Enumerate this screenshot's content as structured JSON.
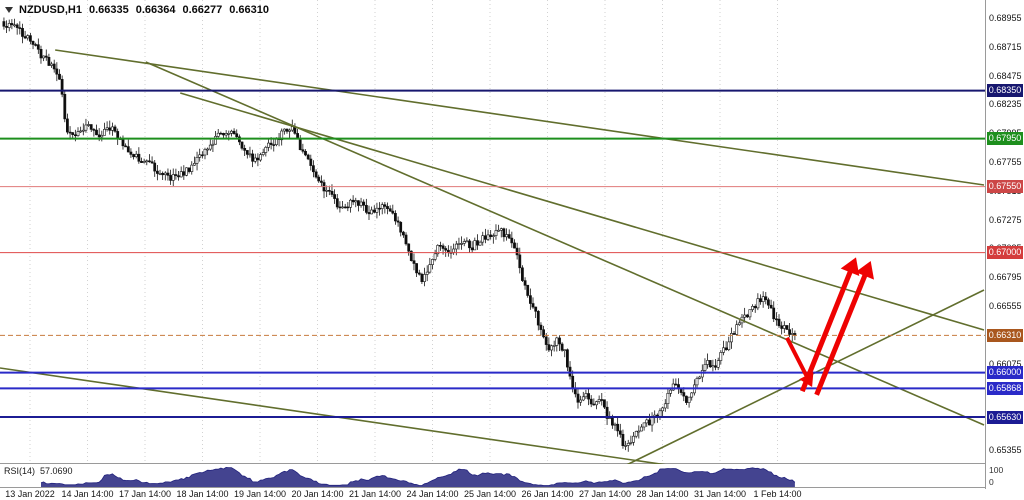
{
  "header": {
    "symbol_timeframe": "NZDUSD,H1",
    "open": "0.66335",
    "high": "0.66364",
    "low": "0.66277",
    "close": "0.66310"
  },
  "price_axis": {
    "ticks": [
      "0.68955",
      "0.68715",
      "0.68475",
      "0.68235",
      "0.67995",
      "0.67755",
      "0.67515",
      "0.67275",
      "0.67035",
      "0.66795",
      "0.66555",
      "0.66315",
      "0.66075",
      "0.65835",
      "0.65595",
      "0.65355"
    ]
  },
  "time_axis": {
    "labels": [
      "13 Jan 2022",
      "14 Jan 14:00",
      "17 Jan 14:00",
      "18 Jan 14:00",
      "19 Jan 14:00",
      "20 Jan 14:00",
      "21 Jan 14:00",
      "24 Jan 14:00",
      "25 Jan 14:00",
      "26 Jan 14:00",
      "27 Jan 14:00",
      "28 Jan 14:00",
      "31 Jan 14:00",
      "1 Feb 14:00"
    ]
  },
  "rsi": {
    "name": "RSI(14)",
    "value": "57.0690",
    "scale_top": "100",
    "scale_bottom": "0"
  },
  "chart_data": {
    "type": "candlestick",
    "symbol": "NZDUSD",
    "timeframe": "H1",
    "last_ohlc": {
      "open": 0.66335,
      "high": 0.66364,
      "low": 0.66277,
      "close": 0.6631
    },
    "last_close": 0.6631,
    "y_range": [
      0.65355,
      0.68955
    ],
    "candle_count": 300,
    "candle_region": [
      0.004,
      0.807
    ],
    "rsi_period": 14,
    "waypoints": [
      [
        0,
        0.6887
      ],
      [
        0.01,
        0.6893
      ],
      [
        0.033,
        0.6876
      ],
      [
        0.058,
        0.6856
      ],
      [
        0.07,
        0.6848
      ],
      [
        0.078,
        0.6805
      ],
      [
        0.09,
        0.6798
      ],
      [
        0.105,
        0.6806
      ],
      [
        0.12,
        0.6795
      ],
      [
        0.135,
        0.6805
      ],
      [
        0.153,
        0.679
      ],
      [
        0.165,
        0.678
      ],
      [
        0.18,
        0.6775
      ],
      [
        0.195,
        0.6768
      ],
      [
        0.215,
        0.6762
      ],
      [
        0.228,
        0.6766
      ],
      [
        0.248,
        0.678
      ],
      [
        0.27,
        0.6796
      ],
      [
        0.285,
        0.6803
      ],
      [
        0.3,
        0.679
      ],
      [
        0.318,
        0.6776
      ],
      [
        0.332,
        0.6787
      ],
      [
        0.352,
        0.6799
      ],
      [
        0.364,
        0.6804
      ],
      [
        0.38,
        0.678
      ],
      [
        0.398,
        0.676
      ],
      [
        0.412,
        0.6748
      ],
      [
        0.425,
        0.6738
      ],
      [
        0.445,
        0.6742
      ],
      [
        0.465,
        0.6733
      ],
      [
        0.48,
        0.674
      ],
      [
        0.494,
        0.6728
      ],
      [
        0.505,
        0.6715
      ],
      [
        0.518,
        0.669
      ],
      [
        0.528,
        0.6675
      ],
      [
        0.54,
        0.6695
      ],
      [
        0.552,
        0.6708
      ],
      [
        0.565,
        0.67
      ],
      [
        0.578,
        0.671
      ],
      [
        0.592,
        0.6705
      ],
      [
        0.605,
        0.6712
      ],
      [
        0.618,
        0.6716
      ],
      [
        0.63,
        0.6718
      ],
      [
        0.645,
        0.6705
      ],
      [
        0.655,
        0.668
      ],
      [
        0.668,
        0.6655
      ],
      [
        0.68,
        0.6635
      ],
      [
        0.69,
        0.662
      ],
      [
        0.7,
        0.663
      ],
      [
        0.71,
        0.6615
      ],
      [
        0.718,
        0.659
      ],
      [
        0.728,
        0.6575
      ],
      [
        0.738,
        0.6582
      ],
      [
        0.746,
        0.657
      ],
      [
        0.755,
        0.6578
      ],
      [
        0.762,
        0.6565
      ],
      [
        0.772,
        0.6555
      ],
      [
        0.782,
        0.6542
      ],
      [
        0.79,
        0.6538
      ],
      [
        0.798,
        0.6548
      ],
      [
        0.808,
        0.6556
      ],
      [
        0.818,
        0.656
      ],
      [
        0.828,
        0.6568
      ],
      [
        0.838,
        0.6578
      ],
      [
        0.848,
        0.659
      ],
      [
        0.856,
        0.6585
      ],
      [
        0.864,
        0.6577
      ],
      [
        0.872,
        0.659
      ],
      [
        0.88,
        0.66
      ],
      [
        0.89,
        0.661
      ],
      [
        0.898,
        0.6605
      ],
      [
        0.906,
        0.6615
      ],
      [
        0.916,
        0.6625
      ],
      [
        0.928,
        0.664
      ],
      [
        0.94,
        0.6648
      ],
      [
        0.952,
        0.6658
      ],
      [
        0.96,
        0.6663
      ],
      [
        0.972,
        0.6649
      ],
      [
        0.982,
        0.6638
      ],
      [
        1,
        0.6631
      ]
    ],
    "levels": [
      {
        "label": "0.68350",
        "value": 0.6835,
        "color": "#17176f",
        "width": 2
      },
      {
        "label": "0.67950",
        "value": 0.6795,
        "color": "#1d8f1d",
        "width": 2
      },
      {
        "label": "0.67550",
        "value": 0.6755,
        "color": "#e07a7a",
        "width": 1,
        "badge": "#cc4747"
      },
      {
        "label": "0.67000",
        "value": 0.67,
        "color": "#df4a4a",
        "width": 1,
        "badge": "#d43c3c"
      },
      {
        "label": "0.66310",
        "value": 0.6631,
        "color": "#c77b3e",
        "width": 1,
        "dash": true,
        "badge": "#a9571e",
        "current": true
      },
      {
        "label": "0.66000",
        "value": 0.66,
        "color": "#2a2ac8",
        "width": 2
      },
      {
        "label": "0.65868",
        "value": 0.65868,
        "color": "#2a2ac8",
        "width": 2
      },
      {
        "label": "0.65630",
        "value": 0.6563,
        "color": "#1c1c94",
        "width": 2
      }
    ],
    "trendlines": [
      {
        "x1": 0.056,
        "p1": 0.68688,
        "x2": 0.999,
        "p2": 0.67563
      },
      {
        "x1": 0.148,
        "p1": 0.68588,
        "x2": 0.999,
        "p2": 0.65563
      },
      {
        "x1": 0.183,
        "p1": 0.6833,
        "x2": 0.999,
        "p2": 0.66355
      },
      {
        "x1": 0.0,
        "p1": 0.66038,
        "x2": 0.712,
        "p2": 0.65188
      },
      {
        "x1": 0.609,
        "p1": 0.65122,
        "x2": 0.999,
        "p2": 0.66688
      }
    ],
    "arrows": [
      {
        "x1": 0.799,
        "p1": 0.6629,
        "x2": 0.8245,
        "p2": 0.6588,
        "w": 4
      },
      {
        "x1": 0.8145,
        "p1": 0.65845,
        "x2": 0.869,
        "p2": 0.6696,
        "w": 5
      },
      {
        "x1": 0.829,
        "p1": 0.65815,
        "x2": 0.884,
        "p2": 0.6693,
        "w": 5
      }
    ],
    "palette": {
      "bull": "#ffffff",
      "bear": "#0d0d0d",
      "wick": "#141414",
      "grid": "#d2d2d2",
      "trendline": "#616e2d",
      "arrow": "#ee0202",
      "rsi": "#23237d",
      "axis_text": "#141414",
      "badge_text": "#ffffff"
    }
  }
}
